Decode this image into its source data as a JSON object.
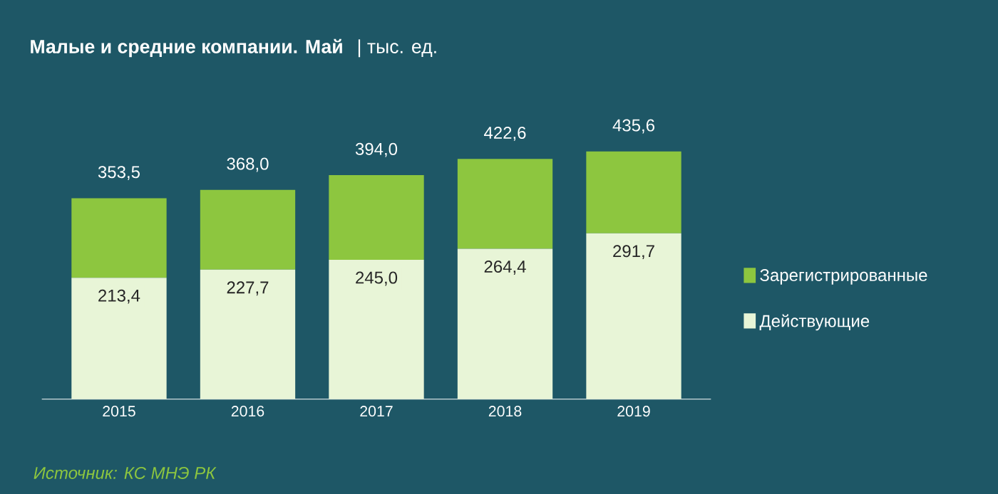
{
  "chart_data": {
    "type": "bar",
    "stacked": true,
    "title": "Малые и средние компании. Май",
    "subtitle": "| тыс. ед.",
    "categories": [
      "2015",
      "2016",
      "2017",
      "2018",
      "2019"
    ],
    "series": [
      {
        "name": "Действующие",
        "color": "#e8f5d7",
        "values": [
          213.4,
          227.7,
          245.0,
          264.4,
          291.7
        ],
        "value_labels": [
          "213,4",
          "227,7",
          "245,0",
          "264,4",
          "291,7"
        ]
      },
      {
        "name": "Зарегистрированные",
        "color": "#8dc63f",
        "values": [
          140.1,
          140.3,
          149.0,
          158.2,
          143.9
        ]
      }
    ],
    "totals": [
      "353,5",
      "368,0",
      "394,0",
      "422,6",
      "435,6"
    ],
    "tick_labels": "x",
    "legend": "right",
    "annotations": [
      "Источник: КС МНЭ РК"
    ]
  }
}
